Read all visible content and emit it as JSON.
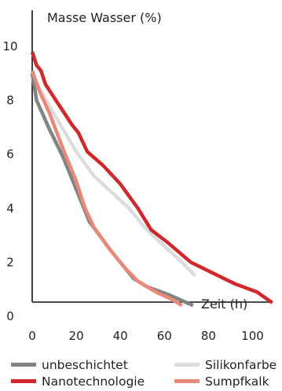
{
  "chart_data": {
    "type": "line",
    "title": "",
    "xlabel": "Zeit (h)",
    "ylabel": "Masse Wasser (%)",
    "xlim": [
      0,
      110
    ],
    "ylim": [
      0,
      10
    ],
    "x_ticks": [
      "0",
      "20",
      "40",
      "60",
      "80",
      "100"
    ],
    "y_ticks": [
      "0",
      "2",
      "4",
      "6",
      "8",
      "10"
    ],
    "grid": false,
    "legend_position": "bottom",
    "series": [
      {
        "name": "unbeschichtet",
        "color": "#838383",
        "points": [
          [
            0,
            9.0
          ],
          [
            2,
            8.0
          ],
          [
            8,
            6.9
          ],
          [
            14,
            5.9
          ],
          [
            20,
            4.7
          ],
          [
            26,
            3.5
          ],
          [
            36,
            2.4
          ],
          [
            46,
            1.4
          ],
          [
            52,
            1.1
          ],
          [
            62,
            0.8
          ],
          [
            73,
            0.4
          ]
        ]
      },
      {
        "name": "Silikonfarbe",
        "color": "#dddddd",
        "points": [
          [
            0,
            9.0
          ],
          [
            5,
            8.2
          ],
          [
            12,
            7.2
          ],
          [
            20,
            6.1
          ],
          [
            28,
            5.2
          ],
          [
            36,
            4.6
          ],
          [
            44,
            4.0
          ],
          [
            52,
            3.2
          ],
          [
            60,
            2.6
          ],
          [
            68,
            2.0
          ],
          [
            74,
            1.5
          ]
        ]
      },
      {
        "name": "Nanotechnologie",
        "color": "#d0282b",
        "points": [
          [
            0,
            9.8
          ],
          [
            2,
            9.3
          ],
          [
            4,
            9.1
          ],
          [
            6,
            8.6
          ],
          [
            10,
            8.1
          ],
          [
            14,
            7.6
          ],
          [
            18,
            7.1
          ],
          [
            21,
            6.8
          ],
          [
            25,
            6.1
          ],
          [
            32,
            5.6
          ],
          [
            40,
            4.9
          ],
          [
            48,
            4.0
          ],
          [
            54,
            3.2
          ],
          [
            62,
            2.7
          ],
          [
            72,
            2.0
          ],
          [
            82,
            1.6
          ],
          [
            92,
            1.2
          ],
          [
            102,
            0.9
          ],
          [
            109,
            0.5
          ]
        ]
      },
      {
        "name": "Sumpfkalk",
        "color": "#e8897a",
        "points": [
          [
            0,
            9.1
          ],
          [
            3,
            8.4
          ],
          [
            8,
            7.5
          ],
          [
            14,
            6.2
          ],
          [
            20,
            5.0
          ],
          [
            24,
            4.0
          ],
          [
            28,
            3.3
          ],
          [
            35,
            2.5
          ],
          [
            42,
            1.8
          ],
          [
            48,
            1.3
          ],
          [
            56,
            0.9
          ],
          [
            64,
            0.6
          ],
          [
            68,
            0.4
          ]
        ]
      }
    ]
  }
}
